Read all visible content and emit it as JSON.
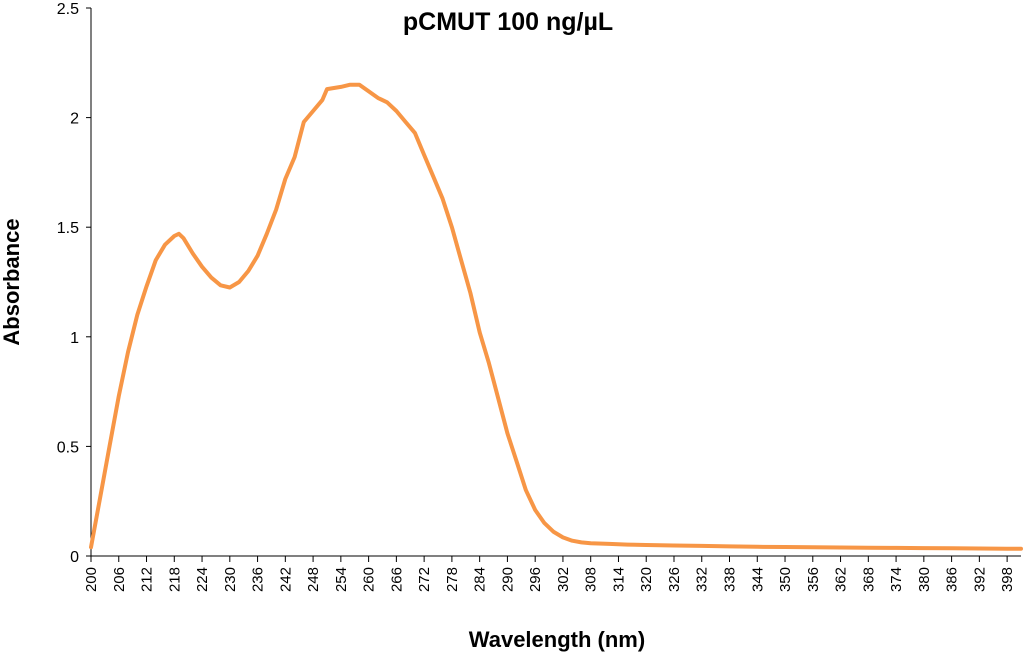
{
  "chart_data": {
    "type": "line",
    "title": "pCMUT 100 ng/µL",
    "xlabel": "Wavelength (nm)",
    "ylabel": "Absorbance",
    "xlim": [
      200,
      401
    ],
    "ylim": [
      0,
      2.5
    ],
    "yticks": [
      "0",
      "0.5",
      "1",
      "1.5",
      "2",
      "2.5"
    ],
    "xticks": [
      "200",
      "206",
      "212",
      "218",
      "224",
      "230",
      "236",
      "242",
      "248",
      "254",
      "260",
      "266",
      "272",
      "278",
      "284",
      "290",
      "296",
      "302",
      "308",
      "314",
      "320",
      "326",
      "332",
      "338",
      "344",
      "350",
      "356",
      "362",
      "368",
      "374",
      "380",
      "386",
      "392",
      "398"
    ],
    "grid": false,
    "legend": "none",
    "series": [
      {
        "color": "#F79646",
        "points": [
          [
            200,
            0.04
          ],
          [
            202,
            0.27
          ],
          [
            204,
            0.5
          ],
          [
            206,
            0.73
          ],
          [
            208,
            0.93
          ],
          [
            210,
            1.1
          ],
          [
            212,
            1.23
          ],
          [
            214,
            1.35
          ],
          [
            216,
            1.42
          ],
          [
            218,
            1.46
          ],
          [
            219,
            1.47
          ],
          [
            220,
            1.45
          ],
          [
            222,
            1.38
          ],
          [
            224,
            1.32
          ],
          [
            226,
            1.27
          ],
          [
            228,
            1.235
          ],
          [
            230,
            1.225
          ],
          [
            232,
            1.25
          ],
          [
            234,
            1.3
          ],
          [
            236,
            1.37
          ],
          [
            238,
            1.47
          ],
          [
            240,
            1.58
          ],
          [
            242,
            1.72
          ],
          [
            244,
            1.82
          ],
          [
            246,
            1.98
          ],
          [
            248,
            2.03
          ],
          [
            250,
            2.08
          ],
          [
            251,
            2.13
          ],
          [
            254,
            2.14
          ],
          [
            256,
            2.15
          ],
          [
            258,
            2.15
          ],
          [
            260,
            2.12
          ],
          [
            262,
            2.09
          ],
          [
            264,
            2.07
          ],
          [
            266,
            2.03
          ],
          [
            268,
            1.98
          ],
          [
            270,
            1.93
          ],
          [
            272,
            1.83
          ],
          [
            274,
            1.73
          ],
          [
            276,
            1.63
          ],
          [
            278,
            1.5
          ],
          [
            280,
            1.35
          ],
          [
            282,
            1.2
          ],
          [
            284,
            1.02
          ],
          [
            286,
            0.88
          ],
          [
            288,
            0.72
          ],
          [
            290,
            0.56
          ],
          [
            292,
            0.43
          ],
          [
            294,
            0.3
          ],
          [
            296,
            0.21
          ],
          [
            298,
            0.15
          ],
          [
            300,
            0.11
          ],
          [
            302,
            0.085
          ],
          [
            304,
            0.07
          ],
          [
            306,
            0.062
          ],
          [
            308,
            0.058
          ],
          [
            312,
            0.055
          ],
          [
            316,
            0.052
          ],
          [
            320,
            0.05
          ],
          [
            326,
            0.048
          ],
          [
            332,
            0.046
          ],
          [
            338,
            0.044
          ],
          [
            344,
            0.042
          ],
          [
            350,
            0.041
          ],
          [
            356,
            0.04
          ],
          [
            362,
            0.039
          ],
          [
            368,
            0.038
          ],
          [
            374,
            0.037
          ],
          [
            380,
            0.036
          ],
          [
            386,
            0.035
          ],
          [
            392,
            0.034
          ],
          [
            398,
            0.033
          ],
          [
            401,
            0.033
          ]
        ]
      }
    ]
  }
}
